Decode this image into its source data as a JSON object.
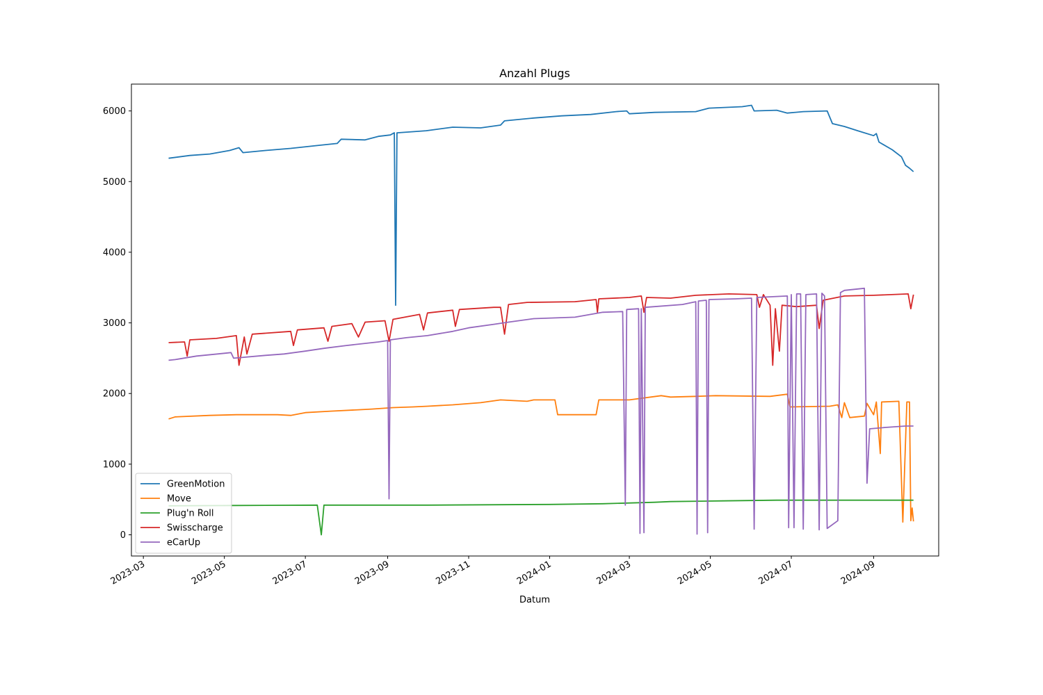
{
  "chart_data": {
    "type": "line",
    "title": "Anzahl Plugs",
    "xlabel": "Datum",
    "ylabel": "",
    "xlim": [
      "2023-02-20",
      "2024-10-20"
    ],
    "ylim": [
      -300,
      6380
    ],
    "x_ticks": [
      "2023-03",
      "2023-05",
      "2023-07",
      "2023-09",
      "2023-11",
      "2024-01",
      "2024-03",
      "2024-05",
      "2024-07",
      "2024-09"
    ],
    "y_ticks": [
      0,
      1000,
      2000,
      3000,
      4000,
      5000,
      6000
    ],
    "legend_position": "lower-left",
    "series": [
      {
        "name": "GreenMotion",
        "color": "#1f77b4",
        "points": [
          [
            "2023-03-20",
            5330
          ],
          [
            "2023-04-05",
            5370
          ],
          [
            "2023-04-20",
            5390
          ],
          [
            "2023-05-05",
            5440
          ],
          [
            "2023-05-12",
            5480
          ],
          [
            "2023-05-15",
            5410
          ],
          [
            "2023-06-01",
            5440
          ],
          [
            "2023-06-20",
            5470
          ],
          [
            "2023-07-10",
            5510
          ],
          [
            "2023-07-25",
            5540
          ],
          [
            "2023-07-28",
            5600
          ],
          [
            "2023-08-15",
            5590
          ],
          [
            "2023-08-25",
            5640
          ],
          [
            "2023-09-03",
            5660
          ],
          [
            "2023-09-06",
            5690
          ],
          [
            "2023-09-07",
            3250
          ],
          [
            "2023-09-08",
            5690
          ],
          [
            "2023-09-30",
            5720
          ],
          [
            "2023-10-20",
            5770
          ],
          [
            "2023-11-10",
            5760
          ],
          [
            "2023-11-25",
            5800
          ],
          [
            "2023-11-28",
            5860
          ],
          [
            "2023-12-20",
            5900
          ],
          [
            "2024-01-10",
            5930
          ],
          [
            "2024-02-01",
            5950
          ],
          [
            "2024-02-20",
            5990
          ],
          [
            "2024-02-28",
            6000
          ],
          [
            "2024-03-01",
            5960
          ],
          [
            "2024-03-20",
            5980
          ],
          [
            "2024-04-20",
            5990
          ],
          [
            "2024-04-30",
            6040
          ],
          [
            "2024-05-25",
            6060
          ],
          [
            "2024-06-01",
            6080
          ],
          [
            "2024-06-03",
            6000
          ],
          [
            "2024-06-20",
            6010
          ],
          [
            "2024-06-28",
            5970
          ],
          [
            "2024-07-10",
            5990
          ],
          [
            "2024-07-28",
            6000
          ],
          [
            "2024-08-01",
            5820
          ],
          [
            "2024-08-10",
            5780
          ],
          [
            "2024-08-20",
            5720
          ],
          [
            "2024-09-01",
            5650
          ],
          [
            "2024-09-03",
            5680
          ],
          [
            "2024-09-05",
            5560
          ],
          [
            "2024-09-15",
            5450
          ],
          [
            "2024-09-22",
            5350
          ],
          [
            "2024-09-25",
            5230
          ],
          [
            "2024-09-28",
            5190
          ],
          [
            "2024-10-01",
            5140
          ]
        ]
      },
      {
        "name": "Move",
        "color": "#ff7f0e",
        "points": [
          [
            "2023-03-20",
            1640
          ],
          [
            "2023-03-25",
            1670
          ],
          [
            "2023-04-20",
            1690
          ],
          [
            "2023-05-10",
            1700
          ],
          [
            "2023-06-10",
            1700
          ],
          [
            "2023-06-20",
            1690
          ],
          [
            "2023-07-01",
            1730
          ],
          [
            "2023-07-20",
            1750
          ],
          [
            "2023-08-10",
            1770
          ],
          [
            "2023-08-20",
            1780
          ],
          [
            "2023-09-05",
            1800
          ],
          [
            "2023-09-20",
            1810
          ],
          [
            "2023-10-01",
            1820
          ],
          [
            "2023-10-20",
            1840
          ],
          [
            "2023-11-10",
            1870
          ],
          [
            "2023-11-25",
            1910
          ],
          [
            "2023-12-15",
            1890
          ],
          [
            "2023-12-20",
            1910
          ],
          [
            "2024-01-05",
            1910
          ],
          [
            "2024-01-07",
            1700
          ],
          [
            "2024-02-05",
            1700
          ],
          [
            "2024-02-07",
            1910
          ],
          [
            "2024-03-01",
            1910
          ],
          [
            "2024-03-25",
            1970
          ],
          [
            "2024-04-01",
            1950
          ],
          [
            "2024-04-20",
            1960
          ],
          [
            "2024-05-05",
            1970
          ],
          [
            "2024-06-15",
            1960
          ],
          [
            "2024-06-28",
            1990
          ],
          [
            "2024-06-30",
            1810
          ],
          [
            "2024-07-30",
            1820
          ],
          [
            "2024-08-05",
            1840
          ],
          [
            "2024-08-08",
            1660
          ],
          [
            "2024-08-10",
            1870
          ],
          [
            "2024-08-14",
            1660
          ],
          [
            "2024-08-25",
            1680
          ],
          [
            "2024-08-27",
            1860
          ],
          [
            "2024-09-01",
            1700
          ],
          [
            "2024-09-03",
            1880
          ],
          [
            "2024-09-06",
            1150
          ],
          [
            "2024-09-07",
            1880
          ],
          [
            "2024-09-20",
            1890
          ],
          [
            "2024-09-23",
            180
          ],
          [
            "2024-09-26",
            1880
          ],
          [
            "2024-09-28",
            1880
          ],
          [
            "2024-09-29",
            200
          ],
          [
            "2024-09-30",
            380
          ],
          [
            "2024-10-01",
            190
          ]
        ]
      },
      {
        "name": "Plug'n Roll",
        "color": "#2ca02c",
        "points": [
          [
            "2023-03-20",
            410
          ],
          [
            "2023-05-10",
            415
          ],
          [
            "2023-07-10",
            420
          ],
          [
            "2023-07-13",
            0
          ],
          [
            "2023-07-15",
            420
          ],
          [
            "2023-10-01",
            420
          ],
          [
            "2024-01-01",
            430
          ],
          [
            "2024-02-10",
            440
          ],
          [
            "2024-03-20",
            460
          ],
          [
            "2024-04-01",
            470
          ],
          [
            "2024-05-10",
            480
          ],
          [
            "2024-06-20",
            490
          ],
          [
            "2024-10-01",
            490
          ]
        ]
      },
      {
        "name": "Swisscharge",
        "color": "#d62728",
        "points": [
          [
            "2023-03-20",
            2720
          ],
          [
            "2023-04-01",
            2730
          ],
          [
            "2023-04-03",
            2530
          ],
          [
            "2023-04-05",
            2760
          ],
          [
            "2023-04-25",
            2780
          ],
          [
            "2023-05-10",
            2820
          ],
          [
            "2023-05-12",
            2400
          ],
          [
            "2023-05-16",
            2800
          ],
          [
            "2023-05-18",
            2560
          ],
          [
            "2023-05-22",
            2840
          ],
          [
            "2023-06-20",
            2880
          ],
          [
            "2023-06-22",
            2680
          ],
          [
            "2023-06-25",
            2900
          ],
          [
            "2023-07-15",
            2930
          ],
          [
            "2023-07-18",
            2740
          ],
          [
            "2023-07-21",
            2950
          ],
          [
            "2023-08-05",
            2990
          ],
          [
            "2023-08-10",
            2800
          ],
          [
            "2023-08-15",
            3010
          ],
          [
            "2023-08-30",
            3030
          ],
          [
            "2023-09-02",
            2740
          ],
          [
            "2023-09-05",
            3050
          ],
          [
            "2023-09-25",
            3120
          ],
          [
            "2023-09-28",
            2900
          ],
          [
            "2023-10-01",
            3140
          ],
          [
            "2023-10-20",
            3180
          ],
          [
            "2023-10-22",
            2950
          ],
          [
            "2023-10-25",
            3190
          ],
          [
            "2023-11-20",
            3220
          ],
          [
            "2023-11-25",
            3220
          ],
          [
            "2023-11-28",
            2840
          ],
          [
            "2023-12-01",
            3260
          ],
          [
            "2023-12-15",
            3290
          ],
          [
            "2024-01-20",
            3300
          ],
          [
            "2024-02-05",
            3330
          ],
          [
            "2024-02-06",
            3150
          ],
          [
            "2024-02-07",
            3340
          ],
          [
            "2024-03-01",
            3360
          ],
          [
            "2024-03-10",
            3380
          ],
          [
            "2024-03-12",
            3150
          ],
          [
            "2024-03-14",
            3360
          ],
          [
            "2024-04-01",
            3350
          ],
          [
            "2024-04-20",
            3390
          ],
          [
            "2024-05-15",
            3410
          ],
          [
            "2024-06-05",
            3400
          ],
          [
            "2024-06-07",
            3220
          ],
          [
            "2024-06-10",
            3400
          ],
          [
            "2024-06-15",
            3250
          ],
          [
            "2024-06-17",
            2400
          ],
          [
            "2024-06-19",
            3200
          ],
          [
            "2024-06-22",
            2600
          ],
          [
            "2024-06-24",
            3250
          ],
          [
            "2024-07-05",
            3230
          ],
          [
            "2024-07-20",
            3250
          ],
          [
            "2024-07-22",
            2920
          ],
          [
            "2024-07-25",
            3320
          ],
          [
            "2024-08-10",
            3380
          ],
          [
            "2024-09-01",
            3390
          ],
          [
            "2024-09-27",
            3410
          ],
          [
            "2024-09-29",
            3200
          ],
          [
            "2024-10-01",
            3400
          ]
        ]
      },
      {
        "name": "eCarUp",
        "color": "#9467bd",
        "points": [
          [
            "2023-03-20",
            2470
          ],
          [
            "2023-03-25",
            2480
          ],
          [
            "2023-04-10",
            2530
          ],
          [
            "2023-05-01",
            2570
          ],
          [
            "2023-05-06",
            2580
          ],
          [
            "2023-05-08",
            2500
          ],
          [
            "2023-06-01",
            2540
          ],
          [
            "2023-06-15",
            2560
          ],
          [
            "2023-07-01",
            2600
          ],
          [
            "2023-07-15",
            2640
          ],
          [
            "2023-08-01",
            2680
          ],
          [
            "2023-08-25",
            2730
          ],
          [
            "2023-09-01",
            2750
          ],
          [
            "2023-09-02",
            510
          ],
          [
            "2023-09-03",
            2760
          ],
          [
            "2023-09-15",
            2790
          ],
          [
            "2023-10-01",
            2820
          ],
          [
            "2023-10-20",
            2880
          ],
          [
            "2023-11-01",
            2930
          ],
          [
            "2023-11-20",
            2980
          ],
          [
            "2023-12-01",
            3010
          ],
          [
            "2023-12-20",
            3060
          ],
          [
            "2024-01-20",
            3080
          ],
          [
            "2024-02-10",
            3150
          ],
          [
            "2024-02-25",
            3160
          ],
          [
            "2024-02-27",
            420
          ],
          [
            "2024-02-28",
            3190
          ],
          [
            "2024-03-08",
            3200
          ],
          [
            "2024-03-09",
            20
          ],
          [
            "2024-03-10",
            3200
          ],
          [
            "2024-03-12",
            30
          ],
          [
            "2024-03-13",
            3220
          ],
          [
            "2024-04-10",
            3260
          ],
          [
            "2024-04-20",
            3300
          ],
          [
            "2024-04-21",
            10
          ],
          [
            "2024-04-22",
            3310
          ],
          [
            "2024-04-28",
            3320
          ],
          [
            "2024-04-29",
            30
          ],
          [
            "2024-04-30",
            3330
          ],
          [
            "2024-05-20",
            3340
          ],
          [
            "2024-06-01",
            3350
          ],
          [
            "2024-06-03",
            80
          ],
          [
            "2024-06-05",
            3360
          ],
          [
            "2024-06-28",
            3380
          ],
          [
            "2024-06-29",
            100
          ],
          [
            "2024-07-01",
            3400
          ],
          [
            "2024-07-03",
            100
          ],
          [
            "2024-07-05",
            3410
          ],
          [
            "2024-07-08",
            3410
          ],
          [
            "2024-07-10",
            80
          ],
          [
            "2024-07-12",
            3400
          ],
          [
            "2024-07-20",
            3410
          ],
          [
            "2024-07-22",
            70
          ],
          [
            "2024-07-24",
            3420
          ],
          [
            "2024-07-26",
            3380
          ],
          [
            "2024-07-28",
            90
          ],
          [
            "2024-08-05",
            200
          ],
          [
            "2024-08-07",
            3430
          ],
          [
            "2024-08-10",
            3460
          ],
          [
            "2024-08-25",
            3490
          ],
          [
            "2024-08-27",
            730
          ],
          [
            "2024-08-29",
            1500
          ],
          [
            "2024-09-10",
            1520
          ],
          [
            "2024-09-25",
            1540
          ],
          [
            "2024-10-01",
            1540
          ]
        ]
      }
    ]
  }
}
